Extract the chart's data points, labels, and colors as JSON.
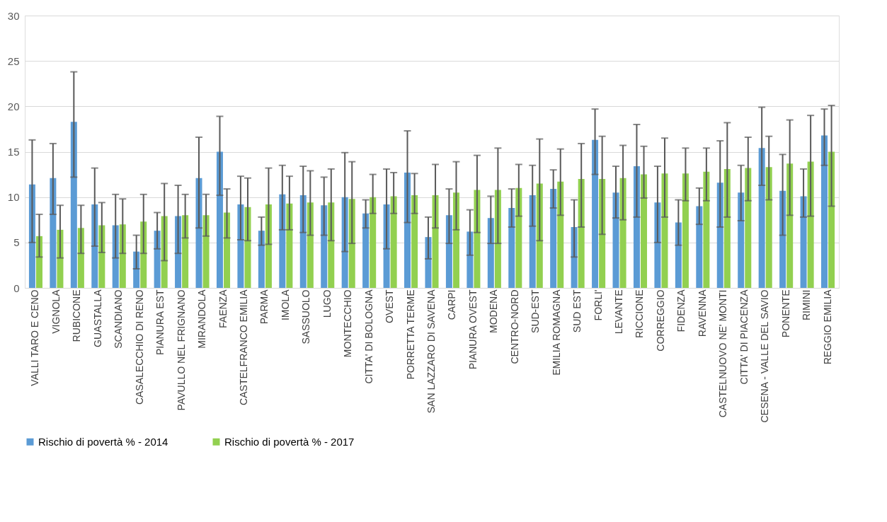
{
  "chart_data": {
    "type": "bar",
    "categories": [
      "VALLI TARO E CENO",
      "VIGNOLA",
      "RUBICONE",
      "GUASTALLA",
      "SCANDIANO",
      "CASALECCHIO DI RENO",
      "PIANURA EST",
      "PAVULLO NEL FRIGNANO",
      "MIRANDOLA",
      "FAENZA",
      "CASTELFRANCO EMILIA",
      "PARMA",
      "IMOLA",
      "SASSUOLO",
      "LUGO",
      "MONTECCHIO",
      "CITTA' DI BOLOGNA",
      "OVEST",
      "PORRETTA TERME",
      "SAN LAZZARO DI SAVENA",
      "CARPI",
      "PIANURA OVEST",
      "MODENA",
      "CENTRO-NORD",
      "SUD-EST",
      "EMILIA ROMAGNA",
      "SUD EST",
      "FORLI'",
      "LEVANTE",
      "RICCIONE",
      "CORREGGIO",
      "FIDENZA",
      "RAVENNA",
      "CASTELNUOVO NE' MONTI",
      "CITTA' DI PIACENZA",
      "CESENA - VALLE DEL SAVIO",
      "PONENTE",
      "RIMINI",
      "REGGIO EMILIA"
    ],
    "series": [
      {
        "name": "Rischio di povertà % - 2014",
        "color": "#5b9bd5",
        "values": [
          11.4,
          12.1,
          18.3,
          9.2,
          6.9,
          4.0,
          6.3,
          7.9,
          12.1,
          15.0,
          9.2,
          6.3,
          10.3,
          10.2,
          9.1,
          10.0,
          8.2,
          9.2,
          12.7,
          5.6,
          8.0,
          6.2,
          7.7,
          8.8,
          10.2,
          10.9,
          6.7,
          16.3,
          10.5,
          13.4,
          9.4,
          7.2,
          9.0,
          11.6,
          10.5,
          15.4,
          10.7,
          10.1,
          16.8
        ],
        "errors": [
          [
            5.0,
            16.3
          ],
          [
            8.1,
            15.9
          ],
          [
            12.2,
            23.8
          ],
          [
            4.6,
            13.2
          ],
          [
            3.3,
            10.3
          ],
          [
            2.1,
            5.8
          ],
          [
            4.3,
            8.3
          ],
          [
            3.8,
            11.3
          ],
          [
            6.6,
            16.6
          ],
          [
            10.2,
            18.9
          ],
          [
            5.3,
            12.3
          ],
          [
            4.7,
            7.8
          ],
          [
            6.4,
            13.5
          ],
          [
            6.1,
            13.4
          ],
          [
            5.8,
            12.2
          ],
          [
            4.0,
            14.9
          ],
          [
            6.6,
            9.7
          ],
          [
            4.3,
            13.1
          ],
          [
            7.2,
            17.3
          ],
          [
            3.2,
            7.8
          ],
          [
            4.9,
            10.9
          ],
          [
            3.6,
            8.6
          ],
          [
            4.9,
            10.1
          ],
          [
            6.7,
            10.9
          ],
          [
            6.8,
            13.5
          ],
          [
            8.8,
            13.0
          ],
          [
            3.4,
            9.7
          ],
          [
            12.5,
            19.7
          ],
          [
            7.7,
            13.4
          ],
          [
            7.8,
            18.0
          ],
          [
            5.0,
            13.4
          ],
          [
            4.7,
            9.7
          ],
          [
            7.0,
            11.0
          ],
          [
            6.7,
            16.2
          ],
          [
            7.4,
            13.5
          ],
          [
            11.3,
            19.9
          ],
          [
            5.8,
            14.7
          ],
          [
            7.8,
            13.1
          ],
          [
            13.5,
            19.7
          ]
        ]
      },
      {
        "name": "Rischio di povertà % - 2017",
        "color": "#92d050",
        "values": [
          5.7,
          6.4,
          6.6,
          6.9,
          7.0,
          7.3,
          7.9,
          8.0,
          8.0,
          8.3,
          8.9,
          9.2,
          9.3,
          9.4,
          9.4,
          9.8,
          10.0,
          10.1,
          10.2,
          10.2,
          10.5,
          10.8,
          10.8,
          11.0,
          11.5,
          11.7,
          12.0,
          12.0,
          12.1,
          12.5,
          12.6,
          12.6,
          12.8,
          13.1,
          13.2,
          13.3,
          13.7,
          13.9,
          15.0
        ],
        "errors": [
          [
            3.4,
            8.1
          ],
          [
            3.3,
            9.1
          ],
          [
            3.8,
            9.1
          ],
          [
            3.9,
            9.4
          ],
          [
            3.8,
            9.8
          ],
          [
            3.8,
            10.3
          ],
          [
            3.0,
            11.5
          ],
          [
            5.5,
            10.3
          ],
          [
            5.7,
            10.3
          ],
          [
            5.5,
            10.9
          ],
          [
            5.2,
            12.1
          ],
          [
            4.8,
            13.2
          ],
          [
            6.4,
            12.3
          ],
          [
            5.8,
            12.9
          ],
          [
            5.2,
            13.1
          ],
          [
            4.9,
            13.9
          ],
          [
            8.2,
            12.5
          ],
          [
            8.2,
            12.7
          ],
          [
            8.2,
            12.6
          ],
          [
            6.6,
            13.6
          ],
          [
            6.4,
            13.9
          ],
          [
            6.1,
            14.6
          ],
          [
            4.9,
            15.4
          ],
          [
            7.9,
            13.6
          ],
          [
            5.2,
            16.4
          ],
          [
            8.0,
            15.3
          ],
          [
            6.7,
            15.9
          ],
          [
            5.9,
            16.7
          ],
          [
            7.5,
            15.7
          ],
          [
            9.9,
            15.6
          ],
          [
            7.8,
            16.5
          ],
          [
            9.6,
            15.4
          ],
          [
            9.6,
            15.4
          ],
          [
            7.8,
            18.2
          ],
          [
            9.6,
            16.6
          ],
          [
            9.7,
            16.7
          ],
          [
            8.0,
            18.5
          ],
          [
            7.9,
            19.0
          ],
          [
            9.0,
            20.1
          ]
        ]
      }
    ],
    "ylim": [
      0,
      30
    ],
    "yticks": [
      0,
      5,
      10,
      15,
      20,
      25,
      30
    ],
    "grid": "y",
    "legend": "bottom"
  }
}
